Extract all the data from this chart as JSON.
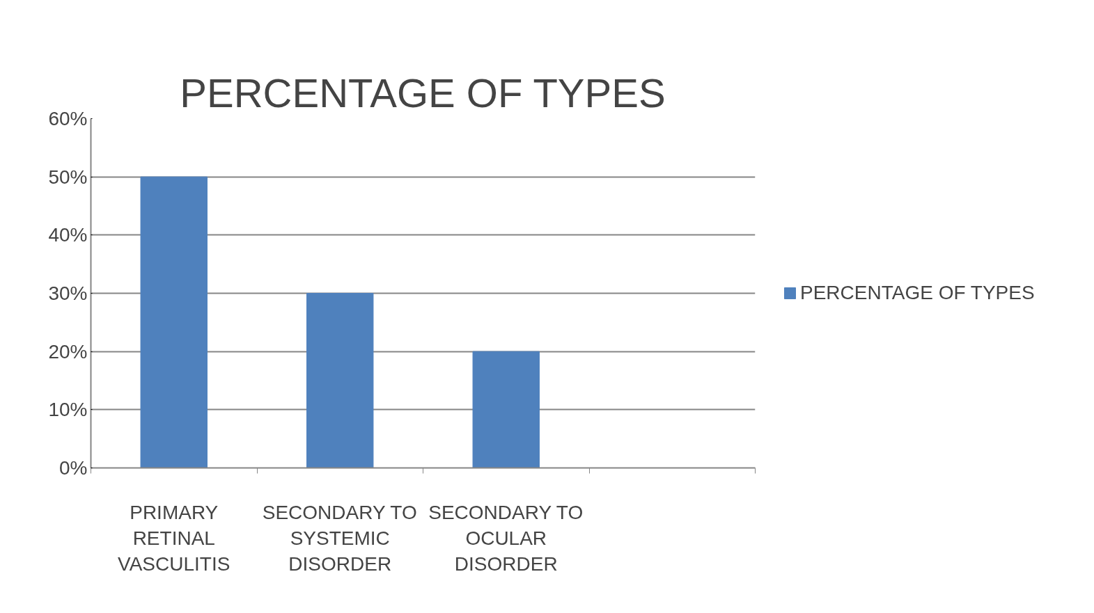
{
  "chart_data": {
    "type": "bar",
    "title": "PERCENTAGE OF TYPES",
    "categories": [
      "PRIMARY RETINAL VASCULITIS",
      "SECONDARY TO SYSTEMIC DISORDER",
      "SECONDARY TO OCULAR DISORDER",
      null
    ],
    "series": [
      {
        "name": "PERCENTAGE OF TYPES",
        "color": "#4f81bd",
        "values": [
          50,
          30,
          20,
          null
        ]
      }
    ],
    "ylim": [
      0,
      60
    ],
    "yticks": [
      {
        "value": 0,
        "label": "0%"
      },
      {
        "value": 10,
        "label": "10%"
      },
      {
        "value": 20,
        "label": "20%"
      },
      {
        "value": 30,
        "label": "30%"
      },
      {
        "value": 40,
        "label": "40%"
      },
      {
        "value": 50,
        "label": "50%"
      },
      {
        "value": 60,
        "label": "60%"
      }
    ],
    "grid": "y",
    "legend": "right"
  }
}
